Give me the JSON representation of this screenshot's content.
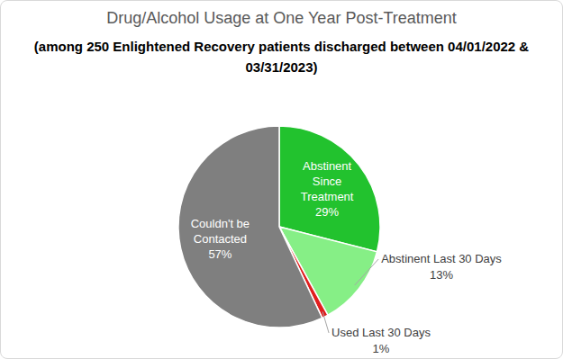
{
  "chart_data": {
    "type": "pie",
    "title": "Drug/Alcohol Usage at One Year Post-Treatment",
    "subtitle": "(among 250 Enlightened Recovery patients discharged between 04/01/2022 & 03/31/2023)",
    "categories": [
      "Abstinent Since Treatment",
      "Abstinent Last 30 Days",
      "Used Last 30 Days",
      "Couldn't be Contacted"
    ],
    "values": [
      29,
      13,
      1,
      57
    ],
    "value_labels": [
      "29%",
      "13%",
      "1%",
      "57%"
    ],
    "colors": [
      "#22c22e",
      "#86ef86",
      "#e01e1e",
      "#7f7f7f"
    ],
    "data_labels": true
  }
}
